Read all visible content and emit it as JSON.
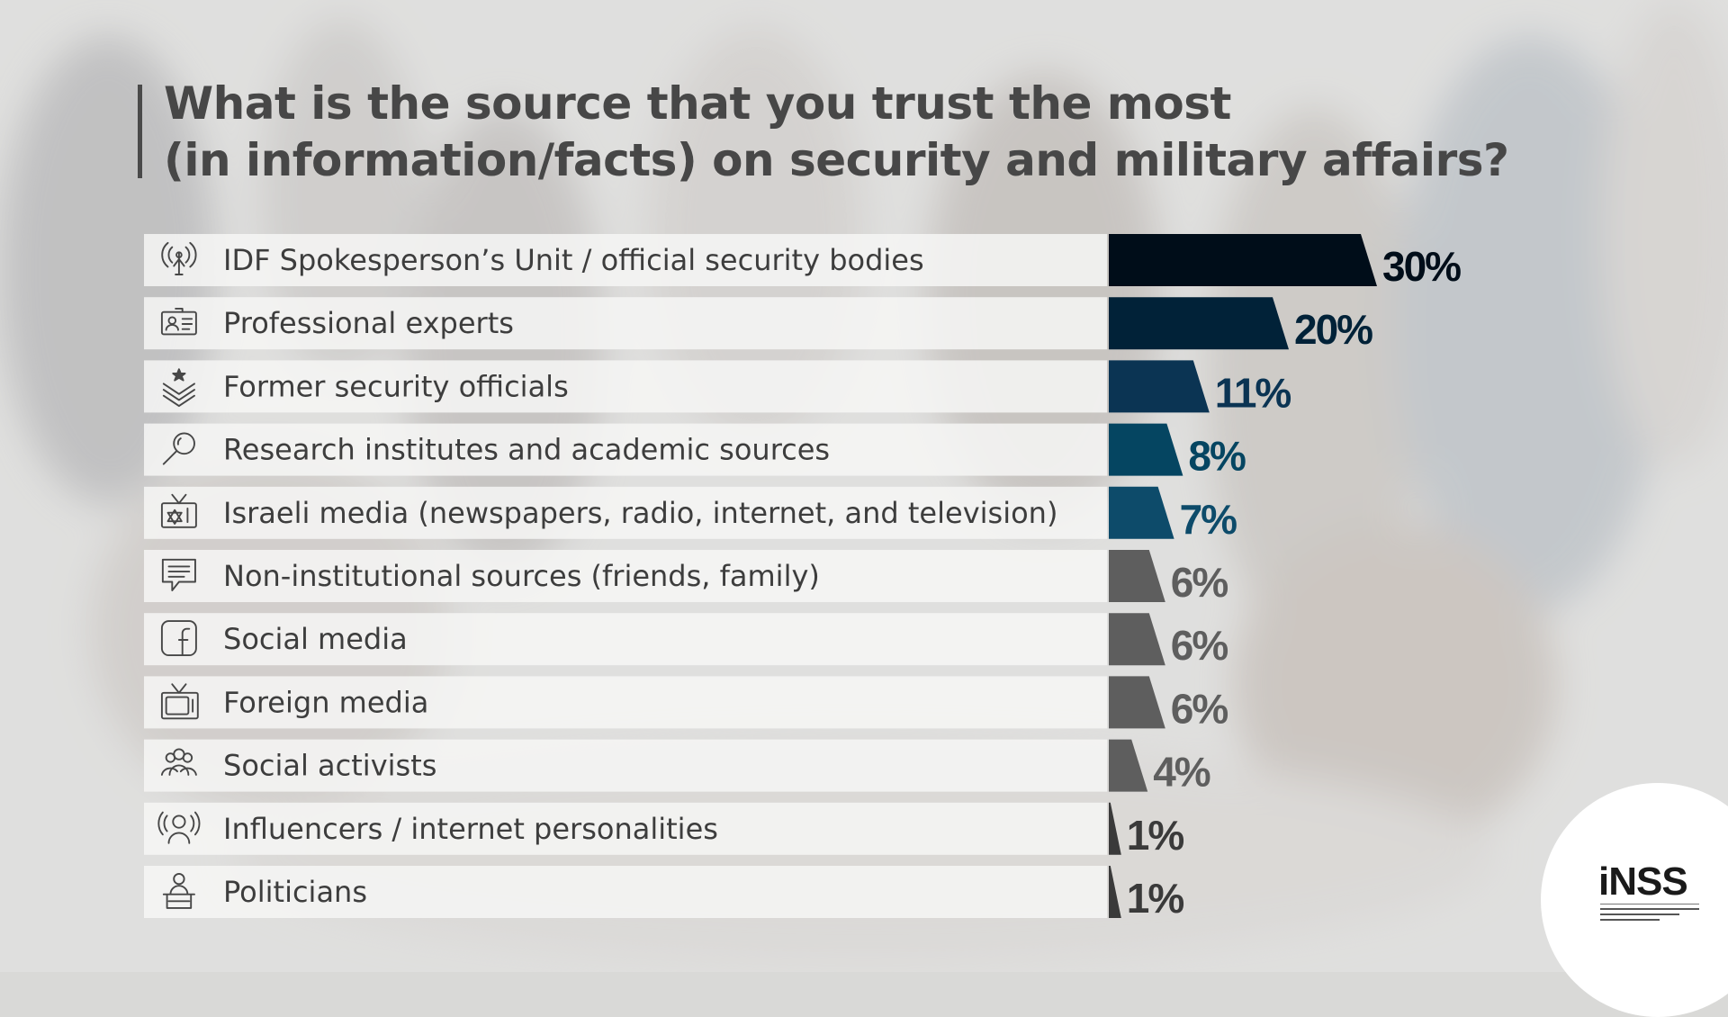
{
  "title": {
    "line1": "What is the source that you trust the most",
    "line2": "(in information/facts) on security and military affairs?"
  },
  "logo": {
    "text": "iNSS"
  },
  "colors": {
    "bar_gradient": [
      "#000d19",
      "#012238",
      "#0b3453",
      "#054561",
      "#0d4b6a"
    ],
    "bar_grey": "#5e5e5e",
    "bar_grey_dark": "#3a3a3a"
  },
  "chart_data": {
    "type": "bar",
    "orientation": "horizontal",
    "title": "What is the source that you trust the most (in information/facts) on security and military affairs?",
    "categories": [
      "IDF Spokesperson’s Unit / official security bodies",
      "Professional experts",
      "Former security officials",
      "Research institutes and academic sources",
      "Israeli media (newspapers, radio, internet, and television)",
      "Non-institutional sources (friends, family)",
      "Social media",
      "Foreign media",
      "Social activists",
      "Influencers / internet personalities",
      "Politicians"
    ],
    "values": [
      30,
      20,
      11,
      8,
      7,
      6,
      6,
      6,
      4,
      1,
      1
    ],
    "value_labels": [
      "30%",
      "20%",
      "11%",
      "8%",
      "7%",
      "6%",
      "6%",
      "6%",
      "4%",
      "1%",
      "1%"
    ],
    "icons": [
      "antenna-icon",
      "id-card-icon",
      "rank-insignia-icon",
      "magnifier-icon",
      "tv-star-icon",
      "chat-bubble-icon",
      "facebook-icon",
      "tv-icon",
      "group-icon",
      "broadcast-person-icon",
      "podium-icon"
    ],
    "xlim": [
      0,
      30
    ],
    "unit": "%",
    "grid": false,
    "legend": "none"
  }
}
